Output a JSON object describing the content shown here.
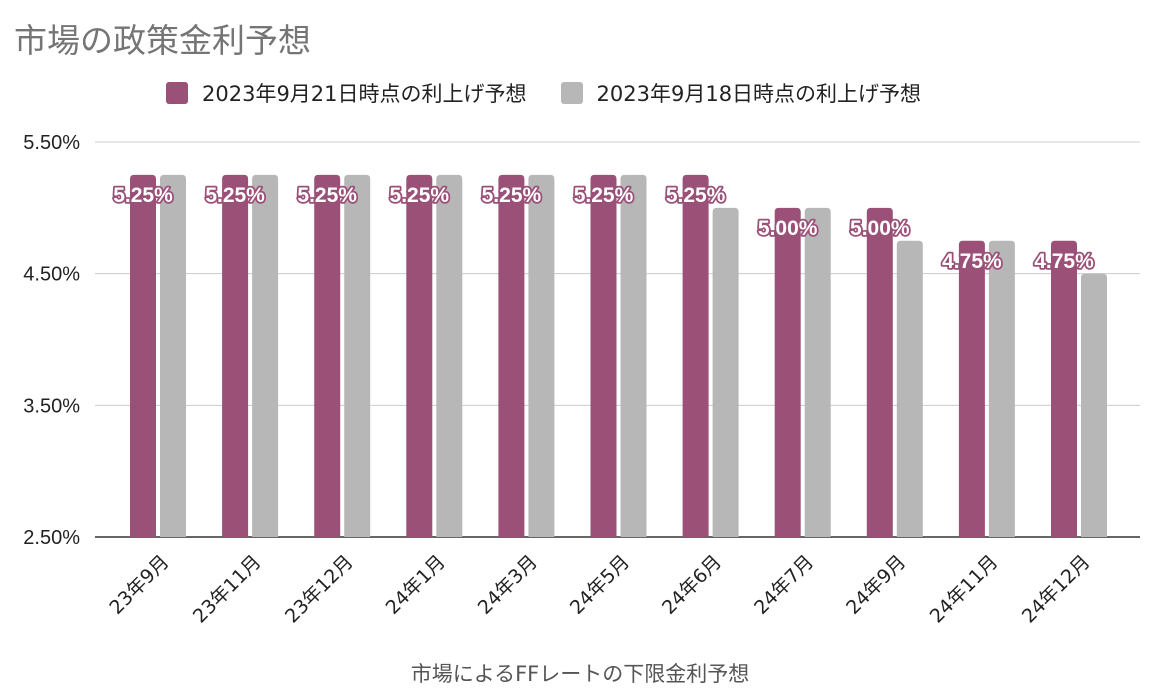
{
  "title": "市場の政策金利予想",
  "xtitle": "市場によるFFレートの下限金利予想",
  "legend": [
    {
      "label": "2023年9月21日時点の利上げ予想",
      "color": "#9b5078"
    },
    {
      "label": "2023年9月18日時点の利上げ予想",
      "color": "#b7b7b7"
    }
  ],
  "chart_data": {
    "type": "bar",
    "title": "市場の政策金利予想",
    "xlabel": "市場によるFFレートの下限金利予想",
    "ylabel": "",
    "ylim": [
      2.5,
      5.5
    ],
    "yticks": [
      "2.50%",
      "3.50%",
      "4.50%",
      "5.50%"
    ],
    "grid": true,
    "legend_position": "top",
    "categories": [
      "23年9月",
      "23年11月",
      "23年12月",
      "24年1月",
      "24年3月",
      "24年5月",
      "24年6月",
      "24年7月",
      "24年9月",
      "24年11月",
      "24年12月"
    ],
    "series": [
      {
        "name": "2023年9月21日時点の利上げ予想",
        "color": "#9b5078",
        "values": [
          5.25,
          5.25,
          5.25,
          5.25,
          5.25,
          5.25,
          5.25,
          5.0,
          5.0,
          4.75,
          4.75
        ],
        "labels": [
          "5.25%",
          "5.25%",
          "5.25%",
          "5.25%",
          "5.25%",
          "5.25%",
          "5.25%",
          "5.00%",
          "5.00%",
          "4.75%",
          "4.75%"
        ]
      },
      {
        "name": "2023年9月18日時点の利上げ予想",
        "color": "#b7b7b7",
        "values": [
          5.25,
          5.25,
          5.25,
          5.25,
          5.25,
          5.25,
          5.0,
          5.0,
          4.75,
          4.75,
          4.5
        ]
      }
    ]
  }
}
